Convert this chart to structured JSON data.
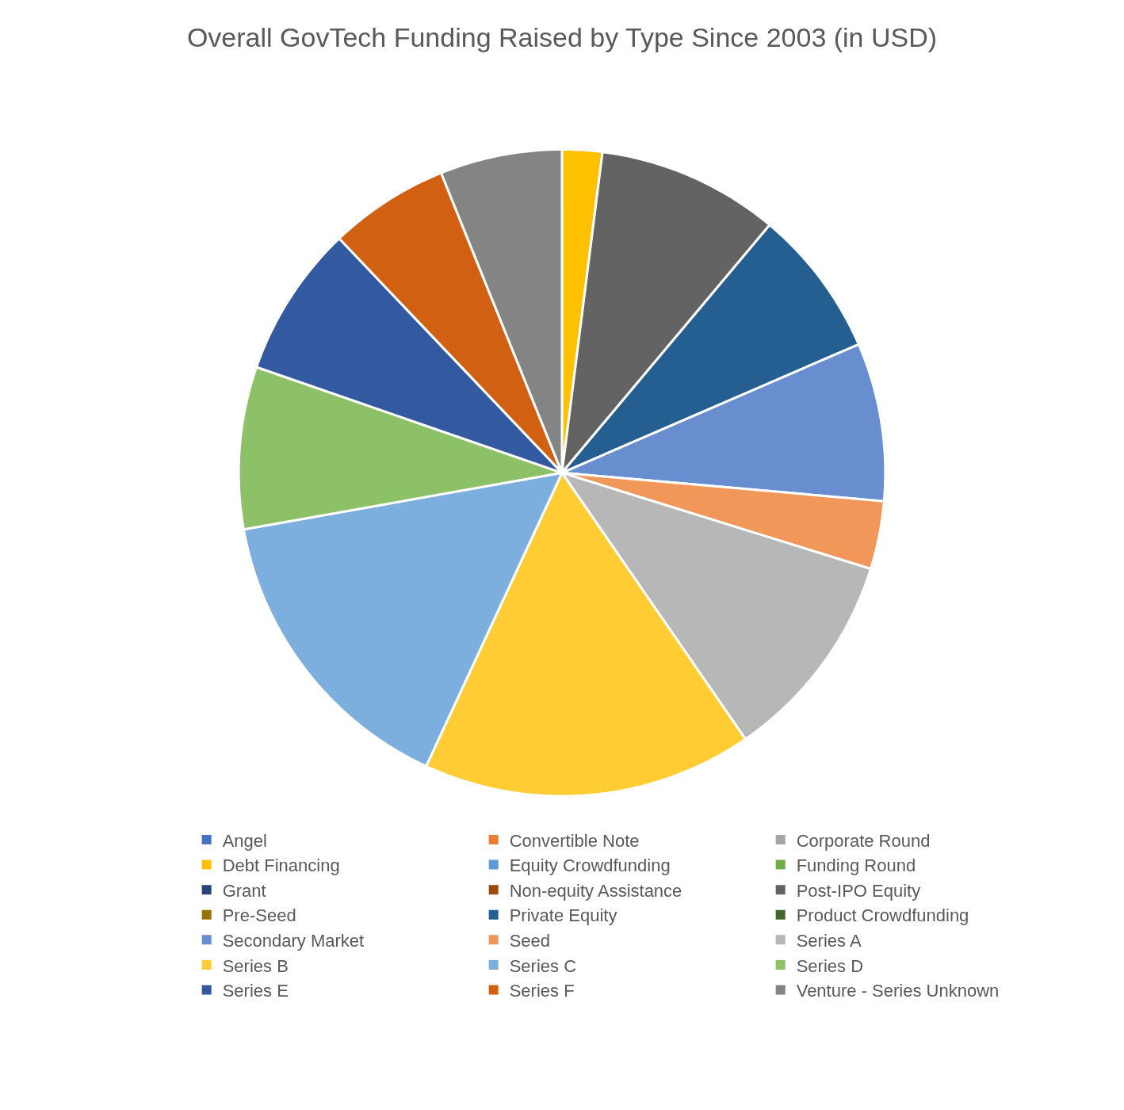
{
  "chart_data": {
    "type": "pie",
    "title": "Overall GovTech Funding Raised by Type Since 2003 (in USD)",
    "categories": [
      "Angel",
      "Convertible Note",
      "Corporate Round",
      "Debt Financing",
      "Equity Crowdfunding",
      "Funding Round",
      "Grant",
      "Non-equity Assistance",
      "Post-IPO Equity",
      "Pre-Seed",
      "Private Equity",
      "Product Crowdfunding",
      "Secondary Market",
      "Seed",
      "Series A",
      "Series B",
      "Series C",
      "Series D",
      "Series E",
      "Series F",
      "Venture - Series Unknown"
    ],
    "values": [
      0,
      0,
      0,
      2.0,
      0,
      0,
      0,
      0,
      9.1,
      0,
      7.4,
      0,
      7.9,
      3.4,
      10.6,
      16.5,
      15.3,
      8.1,
      7.6,
      6.0,
      6.1
    ],
    "colors": [
      "#4472c4",
      "#ed7d31",
      "#a5a5a5",
      "#ffc000",
      "#5b9bd5",
      "#70ad47",
      "#264478",
      "#9e480e",
      "#636363",
      "#997300",
      "#255e91",
      "#43682b",
      "#698ed0",
      "#f1975a",
      "#b7b7b7",
      "#ffcd33",
      "#7cafdd",
      "#8cc168",
      "#335aa1",
      "#d26012",
      "#848484"
    ],
    "legend": "bottom"
  }
}
